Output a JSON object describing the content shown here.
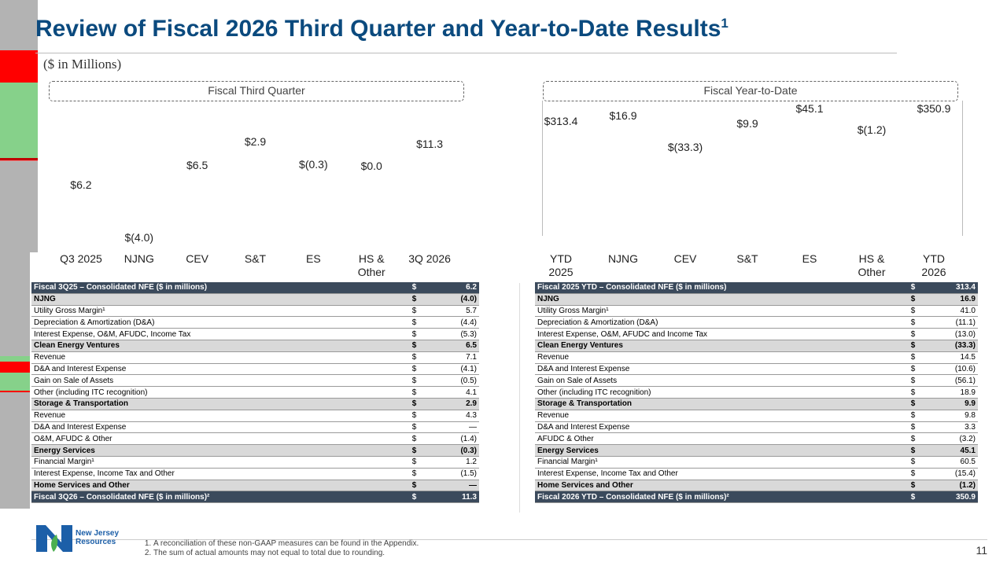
{
  "header": {
    "title": "Review of Fiscal 2026 Third Quarter and Year-to-Date Results",
    "title_note": "1",
    "subtitle": "($ in Millions)"
  },
  "chart_data": [
    {
      "type": "waterfall",
      "title": "Fiscal Third Quarter",
      "categories": [
        "Q3 2025",
        "NJNG",
        "CEV",
        "S&T",
        "ES",
        "HS & Other",
        "3Q 2026"
      ],
      "values": [
        6.2,
        -4.0,
        6.5,
        2.9,
        -0.3,
        0.0,
        11.3
      ],
      "value_labels": [
        "$6.2",
        "$(4.0)",
        "$6.5",
        "$2.9",
        "$(0.3)",
        "$0.0",
        "$11.3"
      ],
      "colors": [
        "#b3b3b3",
        "#ff0000",
        "#86d18a",
        "#86d18a",
        "#c00000",
        "#f08080",
        "#b3b3b3"
      ],
      "ylim": [
        0,
        12
      ]
    },
    {
      "type": "waterfall",
      "title": "Fiscal Year-to-Date",
      "categories": [
        "YTD 2025",
        "NJNG",
        "CEV",
        "S&T",
        "ES",
        "HS & Other",
        "YTD 2026"
      ],
      "values": [
        313.4,
        16.9,
        -33.3,
        9.9,
        45.1,
        -1.2,
        350.9
      ],
      "value_labels": [
        "$313.4",
        "$16.9",
        "$(33.3)",
        "$9.9",
        "$45.1",
        "$(1.2)",
        "$350.9"
      ],
      "colors": [
        "#b3b3b3",
        "#86d18a",
        "#ff0000",
        "#86d18a",
        "#86d18a",
        "#ff0000",
        "#b3b3b3"
      ],
      "ylim": [
        0,
        380
      ]
    }
  ],
  "tables": [
    {
      "rows": [
        [
          "Fiscal 3Q25 – Consolidated NFE ($ in millions)",
          "$",
          "6.2"
        ],
        [
          "NJNG",
          "$",
          "(4.0)"
        ],
        [
          "Utility Gross Margin¹",
          "$",
          "5.7"
        ],
        [
          "Depreciation & Amortization (D&A)",
          "$",
          "(4.4)"
        ],
        [
          "Interest Expense, O&M, AFUDC, Income Tax",
          "$",
          "(5.3)"
        ],
        [
          "Clean Energy Ventures",
          "$",
          "6.5"
        ],
        [
          "Revenue",
          "$",
          "7.1"
        ],
        [
          "D&A and Interest Expense",
          "$",
          "(4.1)"
        ],
        [
          "Gain on Sale of Assets",
          "$",
          "(0.5)"
        ],
        [
          "Other (including ITC recognition)",
          "$",
          "4.1"
        ],
        [
          "Storage & Transportation",
          "$",
          "2.9"
        ],
        [
          "Revenue",
          "$",
          "4.3"
        ],
        [
          "D&A and Interest Expense",
          "$",
          "—"
        ],
        [
          "O&M, AFUDC & Other",
          "$",
          "(1.4)"
        ],
        [
          "Energy Services",
          "$",
          "(0.3)"
        ],
        [
          "Financial Margin¹",
          "$",
          "1.2"
        ],
        [
          "Interest Expense, Income Tax and Other",
          "$",
          "(1.5)"
        ],
        [
          "Home Services and Other",
          "$",
          "—"
        ],
        [
          "Fiscal 3Q26 – Consolidated NFE ($ in millions)²",
          "$",
          "11.3"
        ]
      ]
    },
    {
      "rows": [
        [
          "Fiscal 2025 YTD – Consolidated NFE ($ in millions)",
          "$",
          "313.4"
        ],
        [
          "NJNG",
          "$",
          "16.9"
        ],
        [
          "Utility Gross Margin¹",
          "$",
          "41.0"
        ],
        [
          "Depreciation & Amortization (D&A)",
          "$",
          "(11.1)"
        ],
        [
          "Interest Expense, O&M, AFUDC and Income Tax",
          "$",
          "(13.0)"
        ],
        [
          "Clean Energy Ventures",
          "$",
          "(33.3)"
        ],
        [
          "Revenue",
          "$",
          "14.5"
        ],
        [
          "D&A and Interest Expense",
          "$",
          "(10.6)"
        ],
        [
          "Gain on Sale of Assets",
          "$",
          "(56.1)"
        ],
        [
          "Other (including ITC recognition)",
          "$",
          "18.9"
        ],
        [
          "Storage & Transportation",
          "$",
          "9.9"
        ],
        [
          "Revenue",
          "$",
          "9.8"
        ],
        [
          "D&A and Interest Expense",
          "$",
          "3.3"
        ],
        [
          "AFUDC & Other",
          "$",
          "(3.2)"
        ],
        [
          "Energy Services",
          "$",
          "45.1"
        ],
        [
          "Financial Margin¹",
          "$",
          "60.5"
        ],
        [
          "Interest Expense, Income Tax and Other",
          "$",
          "(15.4)"
        ],
        [
          "Home Services and Other",
          "$",
          "(1.2)"
        ],
        [
          "Fiscal 2026 YTD – Consolidated NFE ($ in millions)²",
          "$",
          "350.9"
        ]
      ]
    }
  ],
  "footnotes": [
    "A reconciliation of these non-GAAP measures can be found in the Appendix.",
    "The sum of actual amounts may not equal to total due to rounding."
  ],
  "logo": "New Jersey Resources",
  "page_number": "11"
}
